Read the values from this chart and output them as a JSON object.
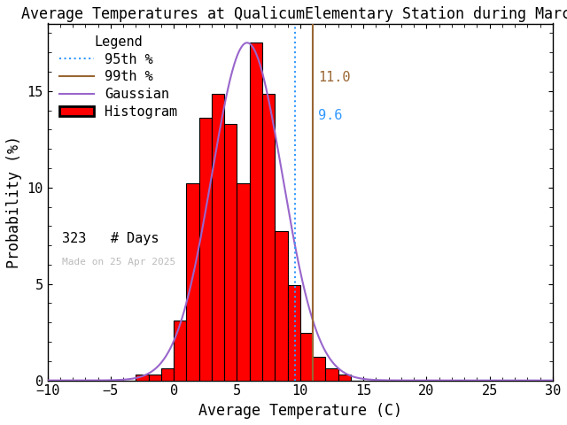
{
  "title": "Average Temperatures at QualicumElementary Station during March",
  "xlabel": "Average Temperature (C)",
  "ylabel": "Probability (%)",
  "xlim": [
    -10,
    30
  ],
  "ylim": [
    0,
    18.5
  ],
  "n_days": 323,
  "percentile_95": 9.6,
  "percentile_99": 11.0,
  "percentile_95_label": "9.6",
  "percentile_99_label": "11.0",
  "gaussian_mean": 5.8,
  "gaussian_std": 2.8,
  "gaussian_peak": 17.5,
  "watermark": "Made on 25 Apr 2025",
  "bin_edges": [
    -3,
    -2,
    -1,
    0,
    1,
    2,
    3,
    4,
    5,
    6,
    7,
    8,
    9,
    10,
    11,
    12,
    13
  ],
  "bin_heights": [
    0.31,
    0.31,
    0.62,
    3.1,
    10.22,
    13.62,
    14.86,
    13.31,
    10.22,
    17.5,
    14.86,
    7.74,
    4.95,
    2.48,
    1.24,
    0.62,
    0.31
  ],
  "bar_color": "#ff0000",
  "bar_edgecolor": "#000000",
  "gaussian_color": "#9966cc",
  "percentile_95_color": "#3399ff",
  "percentile_99_color": "#996633",
  "background_color": "#ffffff",
  "title_fontsize": 12,
  "axis_fontsize": 12,
  "tick_fontsize": 11,
  "legend_fontsize": 11,
  "watermark_color": "#bbbbbb"
}
